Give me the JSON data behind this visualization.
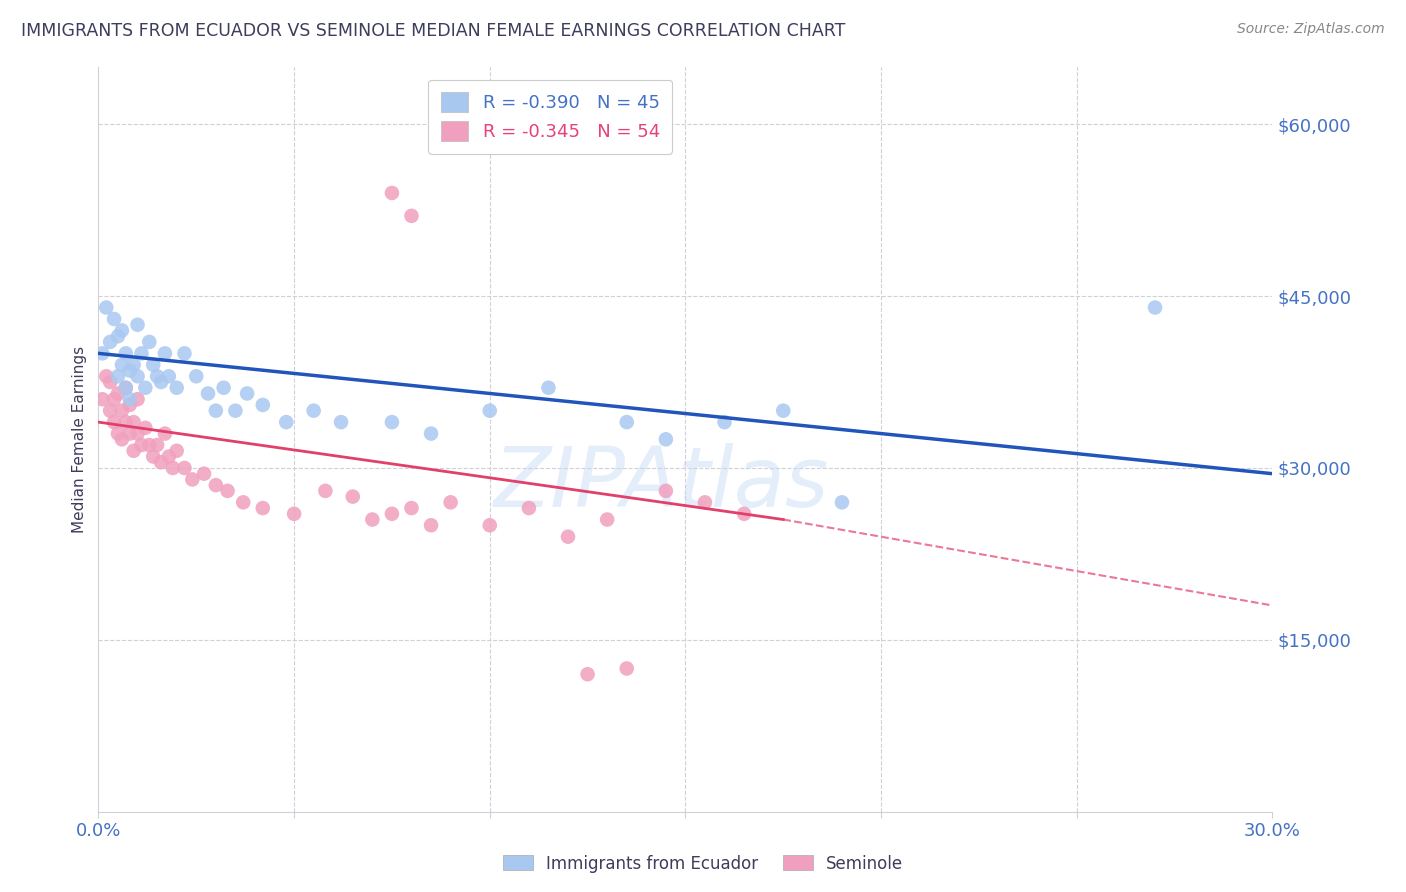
{
  "title": "IMMIGRANTS FROM ECUADOR VS SEMINOLE MEDIAN FEMALE EARNINGS CORRELATION CHART",
  "source": "Source: ZipAtlas.com",
  "ylabel": "Median Female Earnings",
  "xlim": [
    0.0,
    0.3
  ],
  "ylim": [
    0,
    65000
  ],
  "ytick_positions": [
    15000,
    30000,
    45000,
    60000
  ],
  "ytick_labels": [
    "$15,000",
    "$30,000",
    "$45,000",
    "$60,000"
  ],
  "legend_label_colors": [
    "#4472c4",
    "#e8407a"
  ],
  "title_color": "#3d3d5c",
  "source_color": "#888888",
  "axis_color": "#4472c4",
  "background_color": "#ffffff",
  "grid_color": "#d0d0d8",
  "blue_color": "#a8c8f0",
  "pink_color": "#f0a0be",
  "blue_line_color": "#2255bb",
  "pink_line_color": "#e0406a",
  "blue_name": "Immigrants from Ecuador",
  "pink_name": "Seminole",
  "blue_R": "-0.390",
  "blue_N": "45",
  "pink_R": "-0.345",
  "pink_N": "54",
  "blue_trend": [
    0.0,
    40000,
    0.3,
    29500
  ],
  "pink_trend_solid": [
    0.0,
    34000,
    0.175,
    25500
  ],
  "pink_trend_dashed": [
    0.175,
    25500,
    0.3,
    18000
  ],
  "watermark": "ZIPAtlas",
  "blue_x": [
    0.001,
    0.002,
    0.003,
    0.004,
    0.005,
    0.005,
    0.006,
    0.006,
    0.007,
    0.007,
    0.008,
    0.008,
    0.009,
    0.01,
    0.01,
    0.011,
    0.012,
    0.013,
    0.014,
    0.015,
    0.016,
    0.017,
    0.018,
    0.02,
    0.022,
    0.025,
    0.028,
    0.03,
    0.032,
    0.035,
    0.038,
    0.042,
    0.048,
    0.055,
    0.062,
    0.075,
    0.085,
    0.1,
    0.115,
    0.135,
    0.145,
    0.16,
    0.175,
    0.19,
    0.27
  ],
  "blue_y": [
    40000,
    44000,
    41000,
    43000,
    38000,
    41500,
    39000,
    42000,
    37000,
    40000,
    38500,
    36000,
    39000,
    38000,
    42500,
    40000,
    37000,
    41000,
    39000,
    38000,
    37500,
    40000,
    38000,
    37000,
    40000,
    38000,
    36500,
    35000,
    37000,
    35000,
    36500,
    35500,
    34000,
    35000,
    34000,
    34000,
    33000,
    35000,
    37000,
    34000,
    32500,
    34000,
    35000,
    27000,
    44000
  ],
  "pink_x": [
    0.001,
    0.002,
    0.003,
    0.003,
    0.004,
    0.004,
    0.005,
    0.005,
    0.006,
    0.006,
    0.007,
    0.007,
    0.008,
    0.008,
    0.009,
    0.009,
    0.01,
    0.01,
    0.011,
    0.012,
    0.013,
    0.014,
    0.015,
    0.016,
    0.017,
    0.018,
    0.019,
    0.02,
    0.022,
    0.024,
    0.027,
    0.03,
    0.033,
    0.037,
    0.042,
    0.05,
    0.058,
    0.065,
    0.07,
    0.075,
    0.08,
    0.085,
    0.09,
    0.1,
    0.11,
    0.12,
    0.13,
    0.145,
    0.155,
    0.165,
    0.075,
    0.08,
    0.125,
    0.135
  ],
  "pink_y": [
    36000,
    38000,
    35000,
    37500,
    34000,
    36000,
    33000,
    36500,
    35000,
    32500,
    37000,
    34000,
    33000,
    35500,
    34000,
    31500,
    36000,
    33000,
    32000,
    33500,
    32000,
    31000,
    32000,
    30500,
    33000,
    31000,
    30000,
    31500,
    30000,
    29000,
    29500,
    28500,
    28000,
    27000,
    26500,
    26000,
    28000,
    27500,
    25500,
    26000,
    26500,
    25000,
    27000,
    25000,
    26500,
    24000,
    25500,
    28000,
    27000,
    26000,
    54000,
    52000,
    12000,
    12500
  ]
}
